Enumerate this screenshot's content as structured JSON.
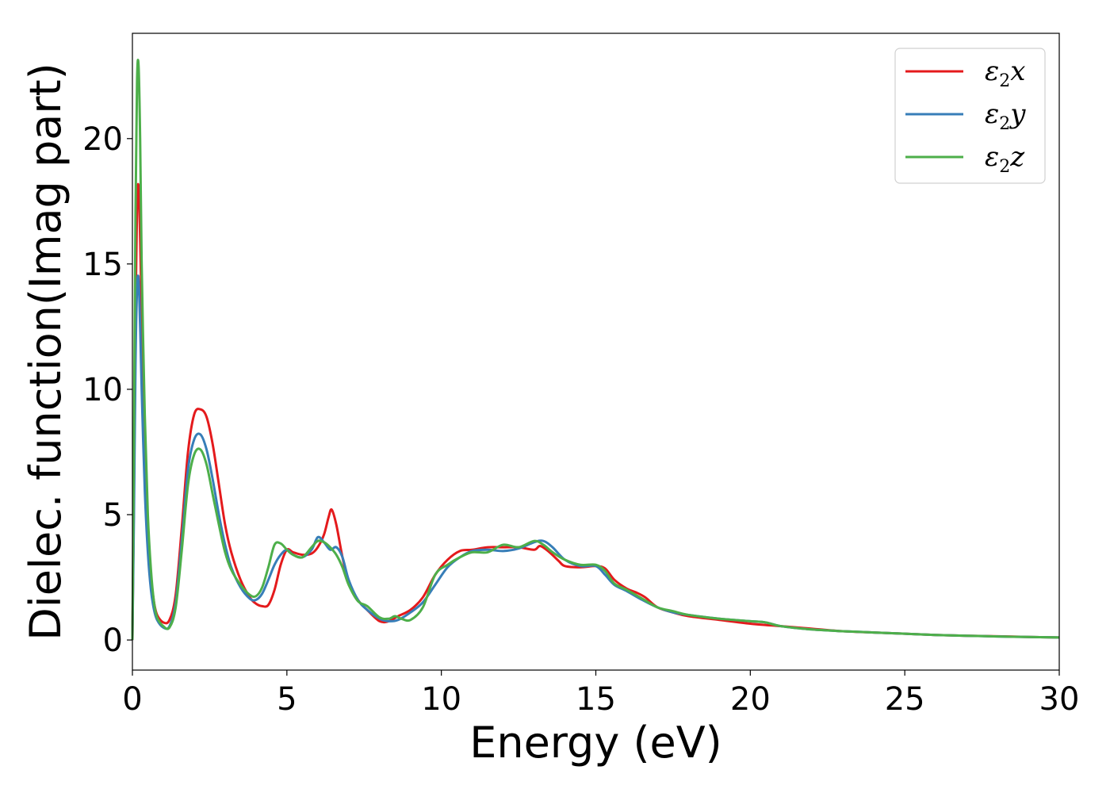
{
  "chart_data": {
    "type": "line",
    "xlabel": "Energy (eV)",
    "ylabel": "Dielec. function(Imag part)",
    "xlim": [
      0,
      30
    ],
    "ylim": [
      -1.2,
      24.2
    ],
    "xticks": [
      0,
      5,
      10,
      15,
      20,
      25,
      30
    ],
    "xtick_labels": [
      "0",
      "5",
      "10",
      "15",
      "20",
      "25",
      "30"
    ],
    "yticks": [
      0,
      5,
      10,
      15,
      20
    ],
    "ytick_labels": [
      "0",
      "5",
      "10",
      "15",
      "20"
    ],
    "grid": false,
    "legend_position": "top-right",
    "series": [
      {
        "name": "ε₂x",
        "legend": {
          "base": "ε",
          "sub": "2",
          "suffix": "x"
        },
        "color": "#e41a1c",
        "x": [
          0,
          0.05,
          0.1,
          0.15,
          0.2,
          0.25,
          0.3,
          0.4,
          0.5,
          0.6,
          0.7,
          0.8,
          1.0,
          1.2,
          1.4,
          1.6,
          1.8,
          2.0,
          2.2,
          2.4,
          2.6,
          2.8,
          3.0,
          3.2,
          3.5,
          3.8,
          4.0,
          4.2,
          4.4,
          4.6,
          4.8,
          5.0,
          5.2,
          5.5,
          5.8,
          6.0,
          6.2,
          6.35,
          6.45,
          6.6,
          6.8,
          7.0,
          7.3,
          7.6,
          8.0,
          8.3,
          8.6,
          9.0,
          9.4,
          9.8,
          10.2,
          10.6,
          11.0,
          11.5,
          12.0,
          12.5,
          13.0,
          13.2,
          13.5,
          13.8,
          14.0,
          14.5,
          15.0,
          15.3,
          15.6,
          16.0,
          16.3,
          16.6,
          17.0,
          17.5,
          18.0,
          19.0,
          20.0,
          21.0,
          22.0,
          23.0,
          24.0,
          25.0,
          26.0,
          27.0,
          28.0,
          29.0,
          30.0
        ],
        "y": [
          0,
          6.0,
          13.0,
          17.3,
          18.1,
          16.0,
          13.0,
          8.0,
          4.5,
          2.5,
          1.5,
          1.0,
          0.7,
          0.8,
          1.8,
          4.5,
          7.5,
          9.0,
          9.2,
          8.9,
          7.8,
          6.2,
          4.6,
          3.5,
          2.4,
          1.7,
          1.45,
          1.35,
          1.4,
          2.0,
          3.0,
          3.6,
          3.5,
          3.4,
          3.45,
          3.7,
          4.2,
          4.9,
          5.2,
          4.6,
          3.3,
          2.3,
          1.6,
          1.2,
          0.75,
          0.75,
          0.95,
          1.2,
          1.7,
          2.6,
          3.2,
          3.55,
          3.6,
          3.7,
          3.7,
          3.7,
          3.6,
          3.75,
          3.5,
          3.15,
          2.95,
          2.9,
          2.95,
          2.85,
          2.4,
          2.05,
          1.9,
          1.7,
          1.3,
          1.1,
          0.95,
          0.8,
          0.65,
          0.55,
          0.45,
          0.35,
          0.3,
          0.25,
          0.2,
          0.17,
          0.15,
          0.12,
          0.1
        ]
      },
      {
        "name": "ε₂y",
        "legend": {
          "base": "ε",
          "sub": "2",
          "suffix": "y"
        },
        "color": "#377eb8",
        "x": [
          0,
          0.05,
          0.1,
          0.15,
          0.2,
          0.25,
          0.3,
          0.4,
          0.5,
          0.6,
          0.7,
          0.8,
          1.0,
          1.2,
          1.4,
          1.6,
          1.8,
          2.0,
          2.2,
          2.4,
          2.6,
          2.8,
          3.0,
          3.2,
          3.5,
          3.8,
          4.0,
          4.2,
          4.4,
          4.6,
          4.8,
          5.0,
          5.2,
          5.5,
          5.8,
          6.0,
          6.2,
          6.4,
          6.6,
          6.8,
          7.0,
          7.3,
          7.6,
          8.0,
          8.3,
          8.6,
          9.0,
          9.4,
          9.8,
          10.2,
          10.6,
          11.0,
          11.5,
          12.0,
          12.5,
          13.0,
          13.3,
          13.6,
          14.0,
          14.5,
          15.0,
          15.3,
          15.6,
          16.0,
          16.5,
          17.0,
          17.5,
          18.0,
          19.0,
          20.0,
          20.5,
          21.0,
          22.0,
          23.0,
          24.0,
          25.0,
          26.0,
          27.0,
          28.0,
          29.0,
          30.0
        ],
        "y": [
          0,
          5.0,
          11.0,
          14.0,
          14.4,
          12.5,
          10.0,
          6.0,
          3.5,
          2.0,
          1.2,
          0.8,
          0.5,
          0.55,
          1.5,
          4.0,
          6.8,
          8.0,
          8.2,
          7.6,
          6.4,
          5.0,
          3.8,
          2.9,
          2.1,
          1.65,
          1.6,
          1.85,
          2.4,
          3.0,
          3.4,
          3.6,
          3.4,
          3.3,
          3.6,
          4.1,
          3.9,
          3.6,
          3.7,
          3.3,
          2.4,
          1.6,
          1.2,
          0.85,
          0.75,
          0.8,
          1.1,
          1.5,
          2.2,
          2.9,
          3.3,
          3.55,
          3.6,
          3.55,
          3.65,
          3.9,
          3.95,
          3.7,
          3.2,
          2.95,
          2.95,
          2.6,
          2.2,
          1.95,
          1.6,
          1.3,
          1.1,
          1.0,
          0.85,
          0.75,
          0.7,
          0.55,
          0.42,
          0.35,
          0.3,
          0.25,
          0.2,
          0.17,
          0.14,
          0.12,
          0.1
        ]
      },
      {
        "name": "ε₂z",
        "legend": {
          "base": "ε",
          "sub": "2",
          "suffix": "z"
        },
        "color": "#4daf4a",
        "x": [
          0,
          0.05,
          0.1,
          0.15,
          0.2,
          0.25,
          0.3,
          0.4,
          0.5,
          0.6,
          0.7,
          0.8,
          1.0,
          1.2,
          1.4,
          1.6,
          1.8,
          2.0,
          2.2,
          2.4,
          2.6,
          2.8,
          3.0,
          3.2,
          3.5,
          3.8,
          4.0,
          4.2,
          4.4,
          4.6,
          4.8,
          5.0,
          5.2,
          5.5,
          5.8,
          6.0,
          6.2,
          6.4,
          6.6,
          6.8,
          7.0,
          7.3,
          7.6,
          8.0,
          8.3,
          8.5,
          8.7,
          9.0,
          9.4,
          9.8,
          10.2,
          10.6,
          11.0,
          11.5,
          12.0,
          12.5,
          13.0,
          13.3,
          13.6,
          14.0,
          14.5,
          15.0,
          15.3,
          15.6,
          16.0,
          16.5,
          17.0,
          17.5,
          18.0,
          19.0,
          20.0,
          20.5,
          21.0,
          22.0,
          23.0,
          24.0,
          25.0,
          26.0,
          27.0,
          28.0,
          29.0,
          30.0
        ],
        "y": [
          0,
          8.0,
          17.0,
          22.3,
          22.9,
          20.0,
          15.0,
          9.0,
          5.0,
          2.8,
          1.5,
          0.9,
          0.55,
          0.5,
          1.3,
          3.6,
          6.2,
          7.4,
          7.6,
          7.0,
          5.8,
          4.6,
          3.5,
          2.8,
          2.2,
          1.8,
          1.75,
          2.1,
          2.9,
          3.8,
          3.85,
          3.6,
          3.4,
          3.3,
          3.7,
          3.95,
          3.9,
          3.7,
          3.4,
          2.9,
          2.2,
          1.55,
          1.35,
          0.9,
          0.85,
          0.95,
          0.85,
          0.8,
          1.3,
          2.6,
          3.0,
          3.3,
          3.5,
          3.5,
          3.8,
          3.7,
          3.95,
          3.8,
          3.5,
          3.2,
          3.0,
          3.0,
          2.75,
          2.25,
          2.0,
          1.65,
          1.3,
          1.15,
          1.0,
          0.85,
          0.75,
          0.7,
          0.55,
          0.42,
          0.35,
          0.3,
          0.25,
          0.2,
          0.17,
          0.14,
          0.12,
          0.1
        ]
      }
    ]
  }
}
